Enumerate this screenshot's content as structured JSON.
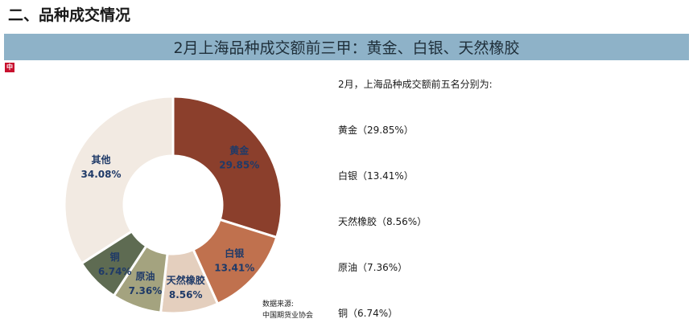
{
  "section_title": "二、品种成交情况",
  "banner_title": "2月上海品种成交额前三甲：黄金、白银、天然橡胶",
  "logo_text": "中",
  "intro_text": "2月，上海品种成交额前五名分别为:",
  "rank_list": [
    "黄金（29.85%）",
    "白银（13.41%）",
    "天然橡胶（8.56%）",
    "原油（7.36%）",
    "铜（6.74%）"
  ],
  "source": {
    "label": "数据来源:",
    "org": "中国期货业协会"
  },
  "chart_data": {
    "type": "pie",
    "variant": "donut",
    "title": "",
    "slices": [
      {
        "name": "黄金",
        "value": 29.85,
        "label": "29.85%",
        "color": "#8b3f2c",
        "text_color": "#1f3a68"
      },
      {
        "name": "白银",
        "value": 13.41,
        "label": "13.41%",
        "color": "#c0714e",
        "text_color": "#1f3a68"
      },
      {
        "name": "天然橡胶",
        "value": 8.56,
        "label": "8.56%",
        "color": "#e4cfbe",
        "text_color": "#1f3a68"
      },
      {
        "name": "原油",
        "value": 7.36,
        "label": "7.36%",
        "color": "#a4a37f",
        "text_color": "#1f3a68"
      },
      {
        "name": "铜",
        "value": 6.74,
        "label": "6.74%",
        "color": "#5e6b52",
        "text_color": "#1f3a68"
      },
      {
        "name": "其他",
        "value": 34.08,
        "label": "34.08%",
        "color": "#f2eae2",
        "text_color": "#1f3a68"
      }
    ]
  }
}
